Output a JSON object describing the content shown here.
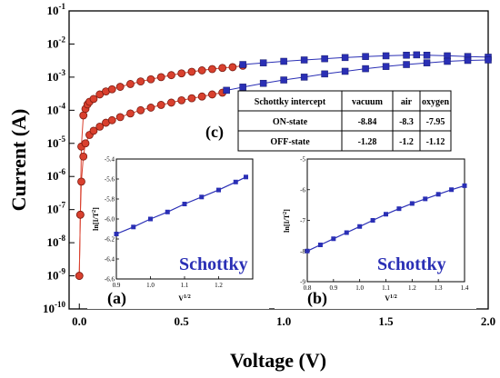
{
  "chart_data": [
    {
      "type": "scatter",
      "xlabel": "Voltage (V)",
      "ylabel": "Current (A)",
      "xlim": [
        -0.05,
        2.0
      ],
      "ylim_log10": [
        -10,
        -1
      ],
      "y_scale": "log",
      "x_ticks": [
        "0.0",
        "0.5",
        "1.0",
        "1.5",
        "2.0"
      ],
      "y_ticks": [
        {
          "base": "10",
          "exp": "-10"
        },
        {
          "base": "10",
          "exp": "-9"
        },
        {
          "base": "10",
          "exp": "-8"
        },
        {
          "base": "10",
          "exp": "-7"
        },
        {
          "base": "10",
          "exp": "-6"
        },
        {
          "base": "10",
          "exp": "-5"
        },
        {
          "base": "10",
          "exp": "-4"
        },
        {
          "base": "10",
          "exp": "-3"
        },
        {
          "base": "10",
          "exp": "-2"
        },
        {
          "base": "10",
          "exp": "-1"
        }
      ],
      "series": [
        {
          "color": "#d9402e",
          "marker": "circle",
          "x": [
            0,
            0.005,
            0.01,
            0.02,
            0.03,
            0.04,
            0.05,
            0.07,
            0.1,
            0.13,
            0.16,
            0.2,
            0.25,
            0.3,
            0.35,
            0.4,
            0.45,
            0.5,
            0.55,
            0.6,
            0.65,
            0.7,
            0.75,
            0.8
          ],
          "y": [
            1e-09,
            7e-08,
            8e-06,
            7e-05,
            0.00011,
            0.00015,
            0.00018,
            0.00022,
            0.0003,
            0.00037,
            0.00043,
            0.00051,
            0.00062,
            0.00074,
            0.00086,
            0.001,
            0.00115,
            0.0013,
            0.00145,
            0.0016,
            0.00175,
            0.0019,
            0.002,
            0.0022
          ]
        },
        {
          "color": "#2a2fb5",
          "marker": "square",
          "x": [
            0.8,
            0.9,
            1.0,
            1.1,
            1.2,
            1.3,
            1.4,
            1.5,
            1.6,
            1.65,
            1.7,
            1.8,
            1.9,
            2.0
          ],
          "y": [
            0.0024,
            0.0027,
            0.003,
            0.0033,
            0.0036,
            0.0039,
            0.0042,
            0.0044,
            0.0046,
            0.0047,
            0.0046,
            0.0044,
            0.0042,
            0.004
          ]
        },
        {
          "color": "#d9402e",
          "marker": "circle",
          "x": [
            0,
            0.005,
            0.01,
            0.02,
            0.03,
            0.05,
            0.07,
            0.1,
            0.13,
            0.16,
            0.2,
            0.25,
            0.3,
            0.35,
            0.4,
            0.45,
            0.5,
            0.55,
            0.6,
            0.65,
            0.7
          ],
          "y": [
            1e-09,
            7e-08,
            7e-07,
            4e-06,
            1e-05,
            1.8e-05,
            2.4e-05,
            3.2e-05,
            4.2e-05,
            5e-05,
            6.2e-05,
            8e-05,
            0.0001,
            0.00012,
            0.000145,
            0.00017,
            0.0002,
            0.00023,
            0.00026,
            0.0003,
            0.00034
          ]
        },
        {
          "color": "#2a2fb5",
          "marker": "square",
          "x": [
            0.72,
            0.8,
            0.9,
            1.0,
            1.1,
            1.2,
            1.3,
            1.4,
            1.5,
            1.6,
            1.7,
            1.8,
            1.9,
            2.0
          ],
          "y": [
            0.0004,
            0.0005,
            0.00065,
            0.00082,
            0.001,
            0.00125,
            0.0015,
            0.0018,
            0.0021,
            0.0024,
            0.0027,
            0.003,
            0.0032,
            0.0033
          ]
        }
      ]
    },
    {
      "type": "line",
      "panel_label": "(a)",
      "caption": "Schottky",
      "xlabel_base": "V",
      "xlabel_exp": "1/2",
      "ylabel_base": "ln[I/T",
      "ylabel_exp": "2",
      "ylabel_end": "]",
      "xlim": [
        0.9,
        1.3
      ],
      "ylim": [
        -6.6,
        -5.4
      ],
      "x_ticks": [
        "0.9",
        "1.0",
        "1.1",
        "1.2"
      ],
      "y_ticks": [
        "-6.6",
        "-6.4",
        "-6.2",
        "-6.0",
        "-5.8",
        "-5.6",
        "-5.4"
      ],
      "x": [
        0.9,
        0.95,
        1.0,
        1.05,
        1.1,
        1.15,
        1.2,
        1.25,
        1.28
      ],
      "y": [
        -6.15,
        -6.08,
        -6.0,
        -5.93,
        -5.85,
        -5.78,
        -5.71,
        -5.63,
        -5.58
      ]
    },
    {
      "type": "line",
      "panel_label": "(b)",
      "caption": "Schottky",
      "xlabel_base": "V",
      "xlabel_exp": "1/2",
      "ylabel_base": "ln[I/T",
      "ylabel_exp": "2",
      "ylabel_end": "]",
      "xlim": [
        0.8,
        1.4
      ],
      "ylim": [
        -9,
        -5
      ],
      "x_ticks": [
        "0.8",
        "0.9",
        "1.0",
        "1.1",
        "1.2",
        "1.3",
        "1.4"
      ],
      "y_ticks": [
        "-9",
        "-8",
        "-7",
        "-6",
        "-5"
      ],
      "x": [
        0.8,
        0.85,
        0.9,
        0.95,
        1.0,
        1.05,
        1.1,
        1.15,
        1.2,
        1.25,
        1.3,
        1.35,
        1.4
      ],
      "y": [
        -8.0,
        -7.8,
        -7.6,
        -7.4,
        -7.2,
        -7.0,
        -6.8,
        -6.62,
        -6.45,
        -6.3,
        -6.15,
        -6.0,
        -5.87
      ]
    },
    {
      "type": "table",
      "panel_label": "(c)",
      "columns": [
        "Schottky intercept",
        "vacuum",
        "air",
        "oxygen"
      ],
      "rows": [
        [
          "ON-state",
          "-8.84",
          "-8.3",
          "-7.95"
        ],
        [
          "OFF-state",
          "-1.28",
          "-1.2",
          "-1.12"
        ]
      ]
    }
  ]
}
